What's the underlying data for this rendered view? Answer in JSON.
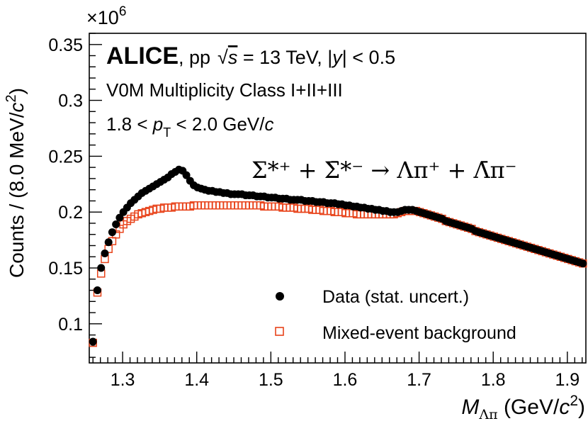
{
  "chart_data": {
    "type": "scatter",
    "experiment": "ALICE",
    "annotations": {
      "system": ", pp",
      "sqrt_s": "s",
      "energy": " = 13 TeV, |",
      "y": "y",
      "y_cut": "| < 0.5",
      "multiplicity": "V0M Multiplicity Class I+II+III",
      "pt_lo": "1.8 < ",
      "pt_p": "p",
      "pt_sub": "T",
      "pt_hi": " < 2.0 GeV/",
      "pt_c": "c",
      "decay": "Σ*⁺ + Σ̄*⁻ → Λπ⁺ + Λ̄π⁻",
      "exponent": "×10",
      "exponent_power": "6"
    },
    "xlabel": {
      "main": "M",
      "sub": "Λπ",
      "units": " (GeV/",
      "c": "c",
      "sup": "2",
      "close": ")"
    },
    "ylabel": "Counts / (8.0 MeV/c²)",
    "xlim": [
      1.255,
      1.925
    ],
    "ylim": [
      0.065,
      0.36
    ],
    "x_ticks": [
      "1.3",
      "1.4",
      "1.5",
      "1.6",
      "1.7",
      "1.8",
      "1.9"
    ],
    "y_ticks": [
      "0.1",
      "0.15",
      "0.2",
      "0.25",
      "0.3",
      "0.35"
    ],
    "legend": {
      "position": "bottom-right",
      "entries": [
        "Data (stat. uncert.)",
        "Mixed-event background"
      ]
    },
    "colors": {
      "data": "#000000",
      "background": "#e8431a"
    },
    "x": [
      1.26,
      1.266,
      1.271,
      1.276,
      1.281,
      1.286,
      1.291,
      1.296,
      1.301,
      1.306,
      1.311,
      1.316,
      1.321,
      1.326,
      1.331,
      1.336,
      1.341,
      1.346,
      1.351,
      1.356,
      1.361,
      1.366,
      1.371,
      1.376,
      1.381,
      1.386,
      1.391,
      1.396,
      1.401,
      1.406,
      1.411,
      1.416,
      1.421,
      1.426,
      1.431,
      1.436,
      1.441,
      1.446,
      1.451,
      1.456,
      1.461,
      1.466,
      1.471,
      1.476,
      1.481,
      1.486,
      1.491,
      1.496,
      1.501,
      1.506,
      1.511,
      1.516,
      1.521,
      1.526,
      1.531,
      1.536,
      1.541,
      1.546,
      1.551,
      1.556,
      1.561,
      1.566,
      1.571,
      1.576,
      1.581,
      1.586,
      1.591,
      1.596,
      1.601,
      1.606,
      1.611,
      1.616,
      1.621,
      1.626,
      1.631,
      1.636,
      1.641,
      1.646,
      1.651,
      1.656,
      1.661,
      1.666,
      1.671,
      1.676,
      1.681,
      1.686,
      1.691,
      1.696,
      1.701,
      1.706,
      1.711,
      1.716,
      1.721,
      1.726,
      1.731,
      1.736,
      1.741,
      1.746,
      1.751,
      1.756,
      1.761,
      1.766,
      1.771,
      1.776,
      1.781,
      1.786,
      1.791,
      1.796,
      1.801,
      1.806,
      1.811,
      1.816,
      1.821,
      1.826,
      1.831,
      1.836,
      1.841,
      1.846,
      1.851,
      1.856,
      1.861,
      1.866,
      1.871,
      1.876,
      1.881,
      1.886,
      1.891,
      1.896,
      1.901,
      1.906,
      1.911,
      1.916,
      1.921
    ],
    "series": [
      {
        "name": "Data (stat. uncert.)",
        "marker": "filled-circle",
        "values": [
          0.084,
          0.13,
          0.15,
          0.163,
          0.173,
          0.182,
          0.189,
          0.195,
          0.2,
          0.204,
          0.208,
          0.211,
          0.214,
          0.217,
          0.219,
          0.221,
          0.223,
          0.225,
          0.227,
          0.229,
          0.231,
          0.234,
          0.236,
          0.238,
          0.237,
          0.233,
          0.228,
          0.224,
          0.222,
          0.221,
          0.22,
          0.219,
          0.219,
          0.218,
          0.218,
          0.217,
          0.217,
          0.216,
          0.216,
          0.216,
          0.216,
          0.215,
          0.215,
          0.215,
          0.214,
          0.214,
          0.214,
          0.213,
          0.213,
          0.213,
          0.212,
          0.212,
          0.212,
          0.211,
          0.211,
          0.211,
          0.211,
          0.21,
          0.21,
          0.21,
          0.209,
          0.209,
          0.209,
          0.208,
          0.208,
          0.208,
          0.207,
          0.207,
          0.206,
          0.206,
          0.205,
          0.205,
          0.204,
          0.204,
          0.203,
          0.203,
          0.202,
          0.202,
          0.201,
          0.201,
          0.2,
          0.2,
          0.2,
          0.201,
          0.202,
          0.202,
          0.202,
          0.201,
          0.2,
          0.199,
          0.198,
          0.197,
          0.196,
          0.195,
          0.194,
          0.192,
          0.191,
          0.19,
          0.189,
          0.188,
          0.187,
          0.186,
          0.185,
          0.183,
          0.182,
          0.181,
          0.18,
          0.179,
          0.178,
          0.177,
          0.176,
          0.175,
          0.174,
          0.173,
          0.172,
          0.171,
          0.17,
          0.169,
          0.168,
          0.167,
          0.166,
          0.165,
          0.164,
          0.163,
          0.162,
          0.161,
          0.16,
          0.159,
          0.158,
          0.157,
          0.156,
          0.155,
          0.154
        ]
      },
      {
        "name": "Mixed-event background",
        "marker": "open-square",
        "values": [
          0.083,
          0.128,
          0.145,
          0.158,
          0.167,
          0.174,
          0.18,
          0.185,
          0.189,
          0.192,
          0.194,
          0.196,
          0.198,
          0.199,
          0.2,
          0.201,
          0.202,
          0.203,
          0.203,
          0.204,
          0.204,
          0.204,
          0.205,
          0.205,
          0.205,
          0.205,
          0.205,
          0.206,
          0.206,
          0.206,
          0.206,
          0.206,
          0.206,
          0.206,
          0.206,
          0.206,
          0.206,
          0.206,
          0.206,
          0.206,
          0.206,
          0.206,
          0.206,
          0.206,
          0.206,
          0.206,
          0.205,
          0.205,
          0.205,
          0.205,
          0.205,
          0.204,
          0.204,
          0.204,
          0.204,
          0.203,
          0.203,
          0.203,
          0.203,
          0.202,
          0.202,
          0.202,
          0.201,
          0.201,
          0.201,
          0.2,
          0.2,
          0.2,
          0.199,
          0.199,
          0.199,
          0.198,
          0.198,
          0.198,
          0.198,
          0.198,
          0.198,
          0.198,
          0.198,
          0.198,
          0.198,
          0.198,
          0.199,
          0.2,
          0.201,
          0.201,
          0.201,
          0.201,
          0.2,
          0.199,
          0.198,
          0.197,
          0.196,
          0.195,
          0.194,
          0.192,
          0.191,
          0.19,
          0.189,
          0.188,
          0.187,
          0.186,
          0.185,
          0.183,
          0.182,
          0.181,
          0.18,
          0.179,
          0.178,
          0.177,
          0.176,
          0.175,
          0.174,
          0.173,
          0.172,
          0.171,
          0.17,
          0.169,
          0.168,
          0.167,
          0.166,
          0.165,
          0.164,
          0.163,
          0.162,
          0.161,
          0.16,
          0.159,
          0.158,
          0.157,
          0.156,
          0.155,
          0.154
        ]
      }
    ]
  }
}
